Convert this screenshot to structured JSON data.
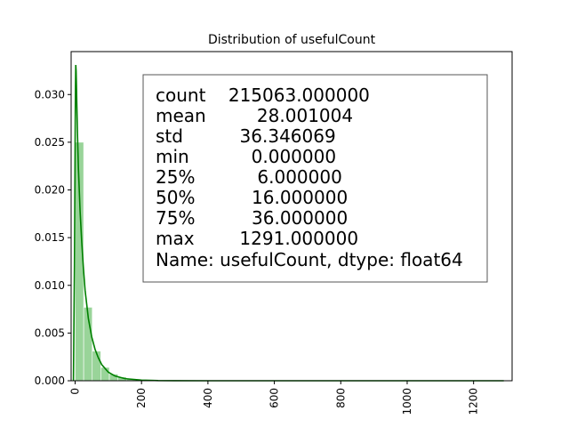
{
  "chart_data": {
    "type": "bar",
    "title": "Distribution of usefulCount",
    "xlabel": "",
    "ylabel": "",
    "xlim": [
      -12,
      1316
    ],
    "ylim": [
      0,
      0.0345
    ],
    "x_ticks": [
      0,
      200,
      400,
      600,
      800,
      1000,
      1200
    ],
    "x_tick_labels": [
      "0",
      "200",
      "400",
      "600",
      "800",
      "1000",
      "1200"
    ],
    "x_tick_rotation": 90,
    "y_ticks": [
      0.0,
      0.005,
      0.01,
      0.015,
      0.02,
      0.025,
      0.03
    ],
    "y_tick_labels": [
      "0.000",
      "0.005",
      "0.010",
      "0.015",
      "0.020",
      "0.025",
      "0.030"
    ],
    "grid": false,
    "histogram": {
      "bin_width": 25.8,
      "bin_starts": [
        0,
        25.8,
        51.6,
        77.4,
        103.2,
        129.0,
        154.8,
        180.6,
        206.4
      ],
      "densities": [
        0.025,
        0.0077,
        0.0031,
        0.0014,
        0.0007,
        0.0004,
        0.0002,
        0.0001,
        5e-05
      ],
      "color": "#7fc97f"
    },
    "kde": {
      "x": [
        -5,
        -2,
        0,
        1,
        2,
        3,
        4,
        5,
        7,
        10,
        15,
        20,
        25,
        30,
        40,
        50,
        60,
        70,
        80,
        100,
        120,
        150,
        200,
        250,
        300,
        400,
        600,
        800,
        1000,
        1200,
        1291
      ],
      "y": [
        0.0,
        0.012,
        0.025,
        0.0305,
        0.0331,
        0.0325,
        0.031,
        0.0292,
        0.026,
        0.0222,
        0.0178,
        0.0145,
        0.0118,
        0.0095,
        0.0065,
        0.0046,
        0.0033,
        0.0024,
        0.0017,
        0.0009,
        0.0005,
        0.00022,
        7e-05,
        2e-05,
        1e-05,
        0.0,
        0.0,
        0.0,
        0.0,
        0.0,
        0.0
      ],
      "color": "#008000"
    }
  },
  "stats_box": {
    "lines": [
      "count    215063.000000",
      "mean         28.001004",
      "std          36.346069",
      "min           0.000000",
      "25%           6.000000",
      "50%          16.000000",
      "75%          36.000000",
      "max        1291.000000",
      "Name: usefulCount, dtype: float64"
    ]
  }
}
